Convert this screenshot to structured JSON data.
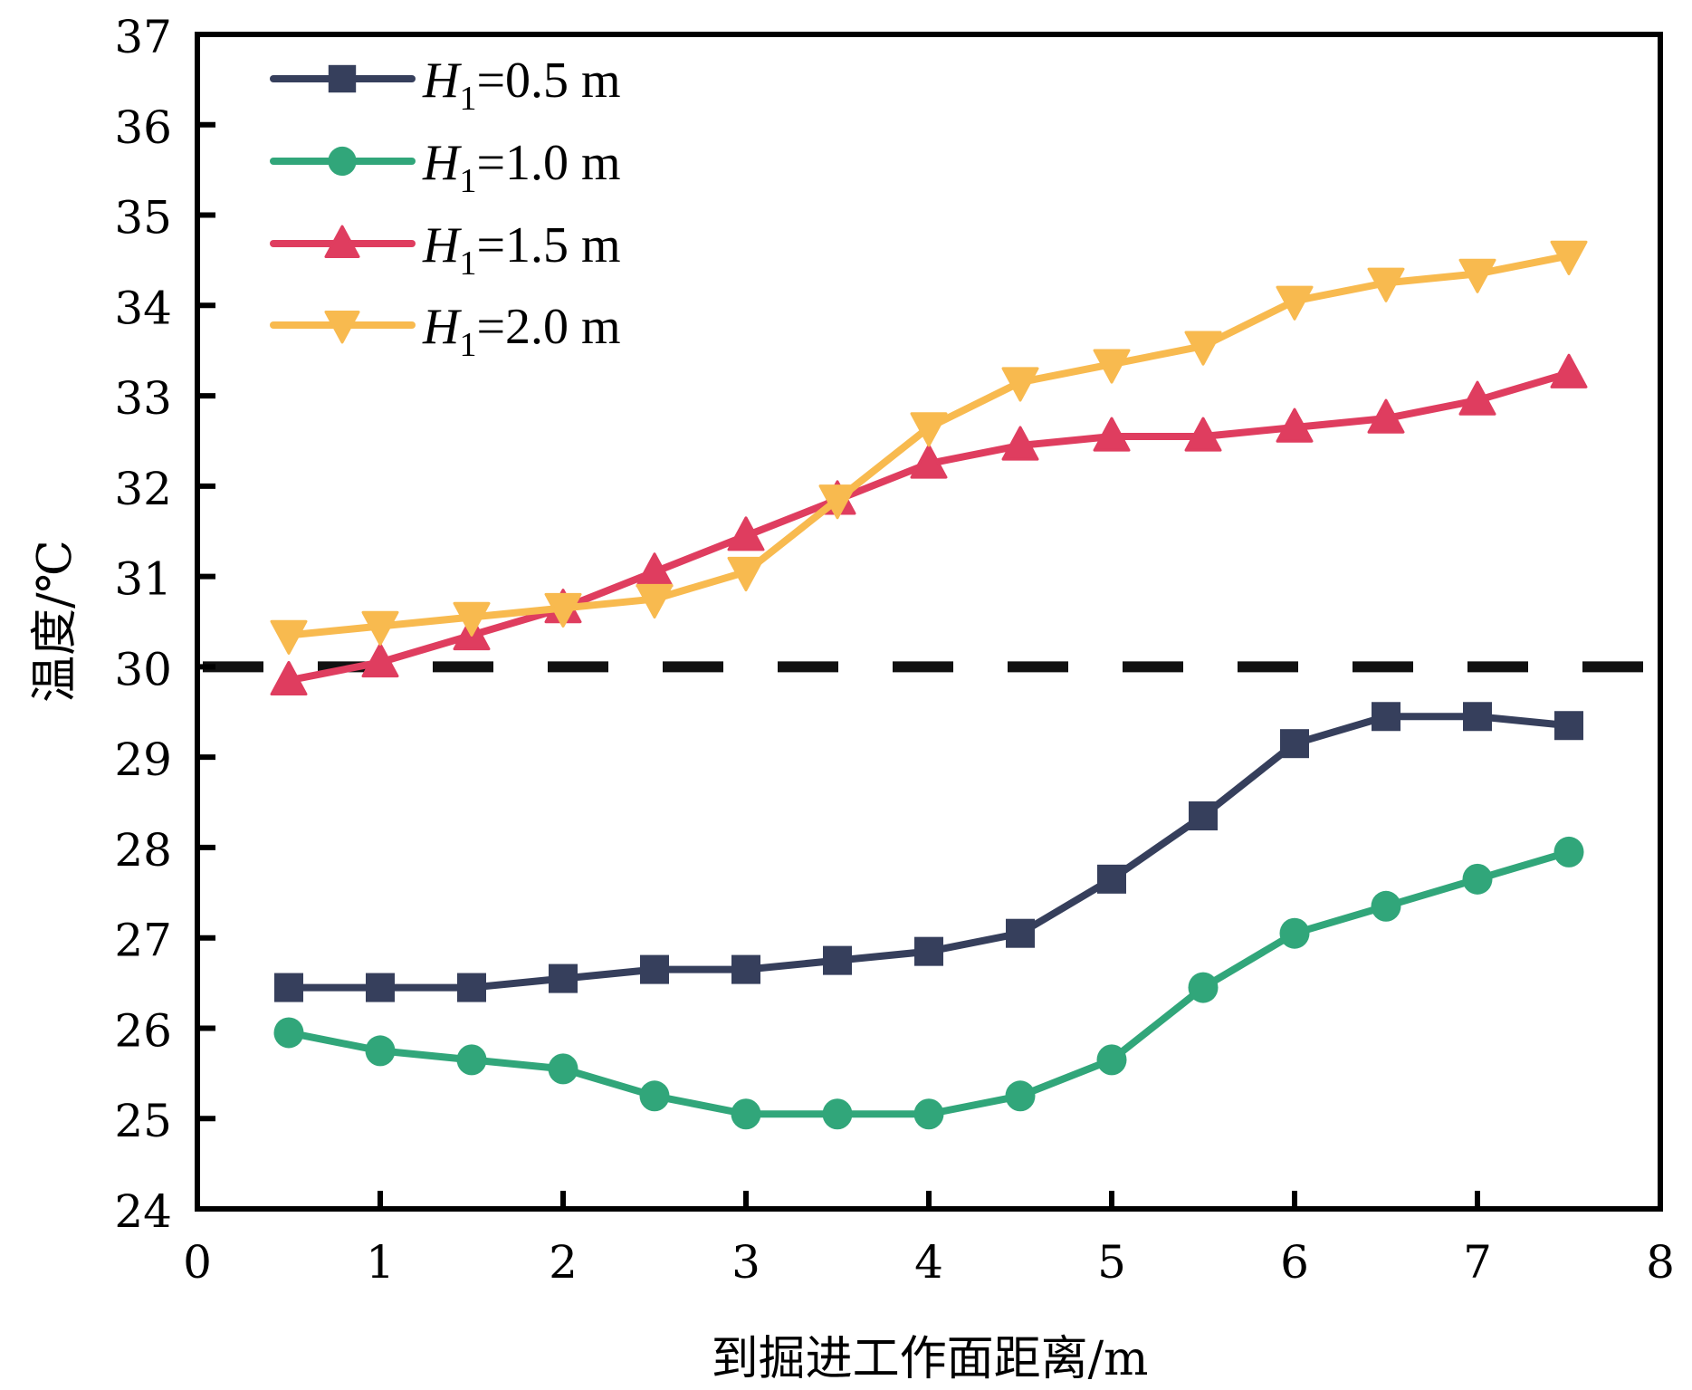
{
  "chart_data": {
    "type": "line",
    "title": "",
    "xlabel": "到掘进工作面距离/m",
    "ylabel": "温度/℃",
    "xlim": [
      0,
      8
    ],
    "ylim": [
      24,
      37
    ],
    "xticks": [
      "0",
      "1",
      "2",
      "3",
      "4",
      "5",
      "6",
      "7",
      "8"
    ],
    "yticks": [
      "24",
      "25",
      "26",
      "27",
      "28",
      "29",
      "30",
      "31",
      "32",
      "33",
      "34",
      "35",
      "36",
      "37"
    ],
    "grid": false,
    "legend_position": "top-left",
    "reference_line": {
      "y": 30,
      "style": "dashed",
      "color": "#111111"
    },
    "x": [
      0.5,
      1.0,
      1.5,
      2.0,
      2.5,
      3.0,
      3.5,
      4.0,
      4.5,
      5.0,
      5.5,
      6.0,
      6.5,
      7.0,
      7.5
    ],
    "series": [
      {
        "name": "H1=0.5 m",
        "legend_symbol": "H",
        "legend_subscript": "1",
        "legend_value": "=0.5 m",
        "marker": "square",
        "color": "#363F5C",
        "values": [
          26.45,
          26.45,
          26.45,
          26.55,
          26.65,
          26.65,
          26.75,
          26.85,
          27.05,
          27.65,
          28.35,
          29.15,
          29.45,
          29.45,
          29.35
        ]
      },
      {
        "name": "H1=1.0 m",
        "legend_symbol": "H",
        "legend_subscript": "1",
        "legend_value": "=1.0 m",
        "marker": "circle",
        "color": "#31A67A",
        "values": [
          25.95,
          25.75,
          25.65,
          25.55,
          25.25,
          25.05,
          25.05,
          25.05,
          25.25,
          25.65,
          26.45,
          27.05,
          27.35,
          27.65,
          27.95
        ]
      },
      {
        "name": "H1=1.5 m",
        "legend_symbol": "H",
        "legend_subscript": "1",
        "legend_value": "=1.5 m",
        "marker": "triangle-up",
        "color": "#DF3D5F",
        "values": [
          29.85,
          30.05,
          30.35,
          30.65,
          31.05,
          31.45,
          31.85,
          32.25,
          32.45,
          32.55,
          32.55,
          32.65,
          32.75,
          32.95,
          33.25
        ]
      },
      {
        "name": "H1=2.0 m",
        "legend_symbol": "H",
        "legend_subscript": "1",
        "legend_value": "=2.0 m",
        "marker": "triangle-down",
        "color": "#F8BA4F",
        "values": [
          30.35,
          30.45,
          30.55,
          30.65,
          30.75,
          31.05,
          31.85,
          32.65,
          33.15,
          33.35,
          33.55,
          34.05,
          34.25,
          34.35,
          34.55
        ]
      }
    ]
  }
}
